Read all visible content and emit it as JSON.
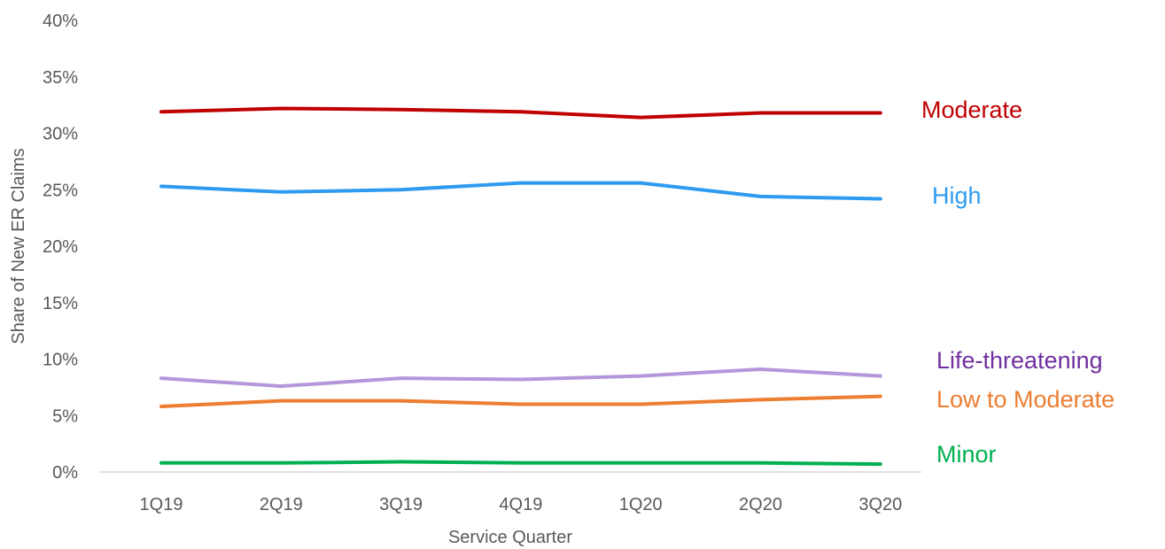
{
  "chart_data": {
    "type": "line",
    "title": "",
    "xlabel": "Service Quarter",
    "ylabel": "Share of New ER Claims",
    "categories": [
      "1Q19",
      "2Q19",
      "3Q19",
      "4Q19",
      "1Q20",
      "2Q20",
      "3Q20"
    ],
    "ylim": [
      0,
      40
    ],
    "y_ticks": [
      "0%",
      "5%",
      "10%",
      "15%",
      "20%",
      "25%",
      "30%",
      "35%",
      "40%"
    ],
    "grid": false,
    "legend": "direct labels at right end of each line",
    "series": [
      {
        "name": "Moderate",
        "color": "#C00000",
        "values": [
          31.9,
          32.2,
          32.1,
          31.9,
          31.4,
          31.8,
          31.8
        ]
      },
      {
        "name": "High",
        "color": "#2E9BF0",
        "values": [
          25.3,
          24.8,
          25.0,
          25.6,
          25.6,
          24.4,
          24.2
        ]
      },
      {
        "name": "Life-threatening",
        "color": "#B497DA",
        "values": [
          8.3,
          7.6,
          8.3,
          8.2,
          8.5,
          9.1,
          8.5
        ]
      },
      {
        "name": "Low to Moderate",
        "color": "#ED7D31",
        "values": [
          5.8,
          6.3,
          6.3,
          6.0,
          6.0,
          6.4,
          6.7
        ]
      },
      {
        "name": "Minor",
        "color": "#00B050",
        "values": [
          0.8,
          0.8,
          0.9,
          0.8,
          0.8,
          0.8,
          0.7
        ]
      }
    ]
  }
}
